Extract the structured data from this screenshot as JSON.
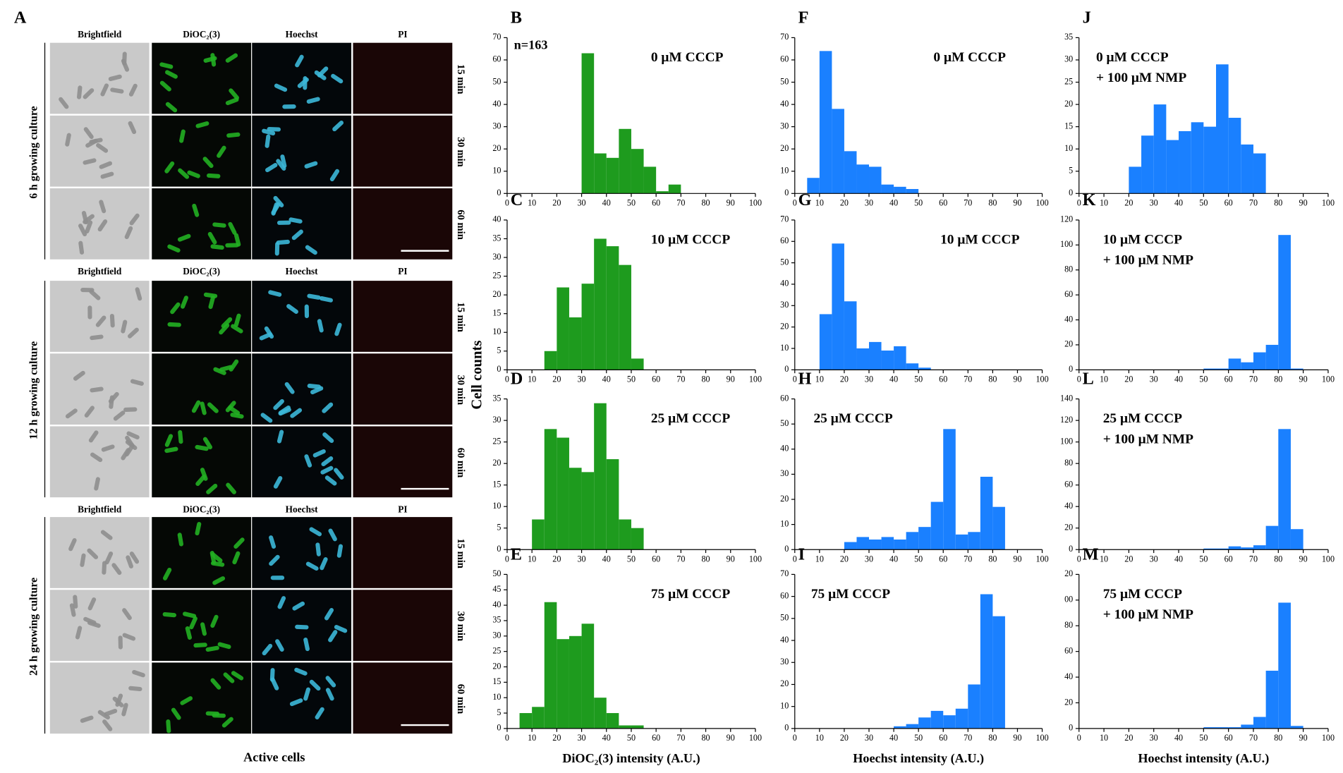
{
  "panel_a": {
    "label": "A",
    "columns": [
      "Brightfield",
      "DiOC₂(3)",
      "Hoechst",
      "PI"
    ],
    "groups": [
      "6 h growing culture",
      "12 h growing culture",
      "24 h growing culture"
    ],
    "times": [
      "15 min",
      "30 min",
      "60 min"
    ],
    "caption": "Active cells"
  },
  "ylabel": "Cell counts",
  "chart_data": [
    {
      "type": "histogram",
      "label": "B",
      "title": "0 μM CCCP",
      "annotation": "n=163",
      "color": "#1e9b1e",
      "bins": [
        30,
        35,
        40,
        45,
        50,
        55,
        60,
        65,
        70
      ],
      "counts": [
        63,
        18,
        16,
        29,
        20,
        12,
        1,
        4
      ],
      "xlim": [
        0,
        100
      ],
      "xticks": [
        0,
        10,
        20,
        30,
        40,
        50,
        60,
        70,
        80,
        90,
        100
      ],
      "ylim": [
        0,
        70
      ],
      "yticks": [
        0,
        10,
        20,
        30,
        40,
        50,
        60,
        70
      ]
    },
    {
      "type": "histogram",
      "label": "C",
      "title": "10 μM CCCP",
      "color": "#1e9b1e",
      "bins": [
        15,
        20,
        25,
        30,
        35,
        40,
        45,
        50,
        55
      ],
      "counts": [
        5,
        22,
        14,
        23,
        35,
        33,
        28,
        3
      ],
      "xlim": [
        0,
        100
      ],
      "xticks": [
        0,
        10,
        20,
        30,
        40,
        50,
        60,
        70,
        80,
        90,
        100
      ],
      "ylim": [
        0,
        40
      ],
      "yticks": [
        0,
        5,
        10,
        15,
        20,
        25,
        30,
        35,
        40
      ]
    },
    {
      "type": "histogram",
      "label": "D",
      "title": "25 μM  CCCP",
      "color": "#1e9b1e",
      "bins": [
        10,
        15,
        20,
        25,
        30,
        35,
        40,
        45,
        50,
        55
      ],
      "counts": [
        7,
        28,
        26,
        19,
        18,
        34,
        21,
        7,
        5
      ],
      "xlim": [
        0,
        100
      ],
      "xticks": [
        0,
        10,
        20,
        30,
        40,
        50,
        60,
        70,
        80,
        90,
        100
      ],
      "ylim": [
        0,
        35
      ],
      "yticks": [
        0,
        5,
        10,
        15,
        20,
        25,
        30,
        35
      ]
    },
    {
      "type": "histogram",
      "label": "E",
      "title": "75 μM CCCP",
      "xlabel": "DiOC₂(3)  intensity (A.U.)",
      "color": "#1e9b1e",
      "bins": [
        5,
        10,
        15,
        20,
        25,
        30,
        35,
        40,
        45,
        50,
        55
      ],
      "counts": [
        5,
        7,
        41,
        29,
        30,
        34,
        10,
        5,
        1,
        1
      ],
      "xlim": [
        0,
        100
      ],
      "xticks": [
        0,
        10,
        20,
        30,
        40,
        50,
        60,
        70,
        80,
        90,
        100
      ],
      "ylim": [
        0,
        50
      ],
      "yticks": [
        0,
        5,
        10,
        15,
        20,
        25,
        30,
        35,
        40,
        45,
        50
      ]
    },
    {
      "type": "histogram",
      "label": "F",
      "title": "0 μM CCCP",
      "color": "#1a80ff",
      "bins": [
        5,
        10,
        15,
        20,
        25,
        30,
        35,
        40,
        45,
        50
      ],
      "counts": [
        7,
        64,
        38,
        19,
        13,
        12,
        4,
        3,
        2
      ],
      "xlim": [
        0,
        100
      ],
      "xticks": [
        0,
        10,
        20,
        30,
        40,
        50,
        60,
        70,
        80,
        90,
        100
      ],
      "ylim": [
        0,
        70
      ],
      "yticks": [
        0,
        10,
        20,
        30,
        40,
        50,
        60,
        70
      ]
    },
    {
      "type": "histogram",
      "label": "G",
      "title": "10 μM CCCP",
      "color": "#1a80ff",
      "bins": [
        10,
        15,
        20,
        25,
        30,
        35,
        40,
        45,
        50,
        55
      ],
      "counts": [
        26,
        59,
        32,
        10,
        13,
        9,
        11,
        3,
        1
      ],
      "xlim": [
        0,
        100
      ],
      "xticks": [
        0,
        10,
        20,
        30,
        40,
        50,
        60,
        70,
        80,
        90,
        100
      ],
      "ylim": [
        0,
        70
      ],
      "yticks": [
        0,
        10,
        20,
        30,
        40,
        50,
        60,
        70
      ]
    },
    {
      "type": "histogram",
      "label": "H",
      "title": "25 μM CCCP",
      "color": "#1a80ff",
      "bins": [
        20,
        25,
        30,
        35,
        40,
        45,
        50,
        55,
        60,
        65,
        70,
        75,
        80,
        85
      ],
      "counts": [
        3,
        5,
        4,
        5,
        4,
        7,
        9,
        19,
        48,
        6,
        7,
        29,
        17
      ],
      "xlim": [
        0,
        100
      ],
      "xticks": [
        0,
        10,
        20,
        30,
        40,
        50,
        60,
        70,
        80,
        90,
        100
      ],
      "ylim": [
        0,
        60
      ],
      "yticks": [
        0,
        10,
        20,
        30,
        40,
        50,
        60
      ]
    },
    {
      "type": "histogram",
      "label": "I",
      "title": "75 μM CCCP",
      "xlabel": "Hoechst intensity (A.U.)",
      "color": "#1a80ff",
      "bins": [
        40,
        45,
        50,
        55,
        60,
        65,
        70,
        75,
        80,
        85
      ],
      "counts": [
        1,
        2,
        5,
        8,
        6,
        9,
        20,
        61,
        51
      ],
      "xlim": [
        0,
        100
      ],
      "xticks": [
        0,
        10,
        20,
        30,
        40,
        50,
        60,
        70,
        80,
        90,
        100
      ],
      "ylim": [
        0,
        70
      ],
      "yticks": [
        0,
        10,
        20,
        30,
        40,
        50,
        60,
        70
      ]
    },
    {
      "type": "histogram",
      "label": "J",
      "title": "0 μM CCCP",
      "subtitle": "+ 100 μM NMP",
      "color": "#1a80ff",
      "bins": [
        20,
        25,
        30,
        35,
        40,
        45,
        50,
        55,
        60,
        65,
        70,
        75
      ],
      "counts": [
        6,
        13,
        20,
        12,
        14,
        16,
        15,
        29,
        17,
        11,
        9
      ],
      "xlim": [
        0,
        100
      ],
      "xticks": [
        0,
        10,
        20,
        30,
        40,
        50,
        60,
        70,
        80,
        90,
        100
      ],
      "ylim": [
        0,
        35
      ],
      "yticks": [
        0,
        5,
        10,
        15,
        20,
        25,
        30,
        35
      ]
    },
    {
      "type": "histogram",
      "label": "K",
      "title": "10 μM CCCP",
      "subtitle": "+ 100 μM NMP",
      "color": "#1a80ff",
      "bins": [
        50,
        55,
        60,
        65,
        70,
        75,
        80,
        85,
        90
      ],
      "counts": [
        1,
        1,
        9,
        6,
        14,
        20,
        108,
        1
      ],
      "xlim": [
        0,
        100
      ],
      "xticks": [
        0,
        10,
        20,
        30,
        40,
        50,
        60,
        70,
        80,
        90,
        100
      ],
      "ylim": [
        0,
        120
      ],
      "yticks": [
        0,
        20,
        40,
        60,
        80,
        100,
        120
      ]
    },
    {
      "type": "histogram",
      "label": "L",
      "title": "25 μM CCCP",
      "subtitle": "+ 100 μM NMP",
      "color": "#1a80ff",
      "bins": [
        50,
        55,
        60,
        65,
        70,
        75,
        80,
        85,
        90
      ],
      "counts": [
        1,
        1,
        3,
        2,
        4,
        22,
        112,
        19
      ],
      "xlim": [
        0,
        100
      ],
      "xticks": [
        0,
        10,
        20,
        30,
        40,
        50,
        60,
        70,
        80,
        90,
        100
      ],
      "ylim": [
        0,
        140
      ],
      "yticks": [
        0,
        20,
        40,
        60,
        80,
        100,
        120,
        140
      ]
    },
    {
      "type": "histogram",
      "label": "M",
      "title": "75 μM CCCP",
      "subtitle": "+ 100 μM NMP",
      "xlabel": "Hoechst intensity (A.U.)",
      "color": "#1a80ff",
      "bins": [
        50,
        55,
        60,
        65,
        70,
        75,
        80,
        85,
        90
      ],
      "counts": [
        1,
        1,
        1,
        3,
        9,
        45,
        98,
        2
      ],
      "xlim": [
        0,
        100
      ],
      "xticks": [
        0,
        10,
        20,
        30,
        40,
        50,
        60,
        70,
        80,
        90,
        100
      ],
      "ylim": [
        0,
        120
      ],
      "yticks": [
        0,
        20,
        40,
        60,
        80,
        {
          "value": 100,
          "label": "00"
        },
        {
          "value": 120,
          "label": "20"
        }
      ]
    }
  ]
}
